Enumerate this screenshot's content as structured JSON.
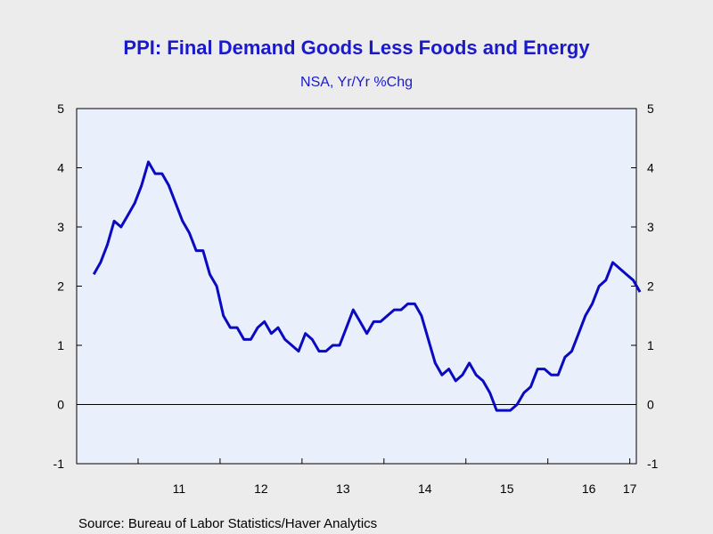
{
  "colors": {
    "page_background": "#ececec",
    "plot_background": "#eaf0fb",
    "title": "#1a1acc",
    "line": "#0a0ac0",
    "axis": "#000000"
  },
  "chart_data": {
    "type": "line",
    "title": "PPI: Final Demand Goods Less Foods and Energy",
    "subtitle": "NSA, Yr/Yr %Chg",
    "source": "Source:  Bureau of Labor Statistics/Haver Analytics",
    "xlabel": "",
    "ylabel": "",
    "ylim": [
      -1,
      5
    ],
    "yticks": [
      "-1",
      "0",
      "1",
      "2",
      "3",
      "4",
      "5"
    ],
    "xlim": [
      2010.25,
      2017.08
    ],
    "xticks": [
      {
        "label": "11",
        "pos": 2011.5
      },
      {
        "label": "12",
        "pos": 2012.5
      },
      {
        "label": "13",
        "pos": 2013.5
      },
      {
        "label": "14",
        "pos": 2014.5
      },
      {
        "label": "15",
        "pos": 2015.5
      },
      {
        "label": "16",
        "pos": 2016.5
      },
      {
        "label": "17",
        "pos": 2017.0
      }
    ],
    "zero_line": true,
    "grid": false,
    "dual_y_axis": true,
    "series": [
      {
        "start": "2010-06",
        "frequency": "monthly",
        "values": [
          2.2,
          2.4,
          2.7,
          3.1,
          3.0,
          3.2,
          3.4,
          3.7,
          4.1,
          3.9,
          3.9,
          3.7,
          3.4,
          3.1,
          2.9,
          2.6,
          2.6,
          2.2,
          2.0,
          1.5,
          1.3,
          1.3,
          1.1,
          1.1,
          1.3,
          1.4,
          1.2,
          1.3,
          1.1,
          1.0,
          0.9,
          1.2,
          1.1,
          0.9,
          0.9,
          1.0,
          1.0,
          1.3,
          1.6,
          1.4,
          1.2,
          1.4,
          1.4,
          1.5,
          1.6,
          1.6,
          1.7,
          1.7,
          1.5,
          1.1,
          0.7,
          0.5,
          0.6,
          0.4,
          0.5,
          0.7,
          0.5,
          0.4,
          0.2,
          -0.1,
          -0.1,
          -0.1,
          0.0,
          0.2,
          0.3,
          0.6,
          0.6,
          0.5,
          0.5,
          0.8,
          0.9,
          1.2,
          1.5,
          1.7,
          2.0,
          2.1,
          2.4,
          2.3,
          2.2,
          2.1,
          1.9
        ]
      }
    ]
  }
}
